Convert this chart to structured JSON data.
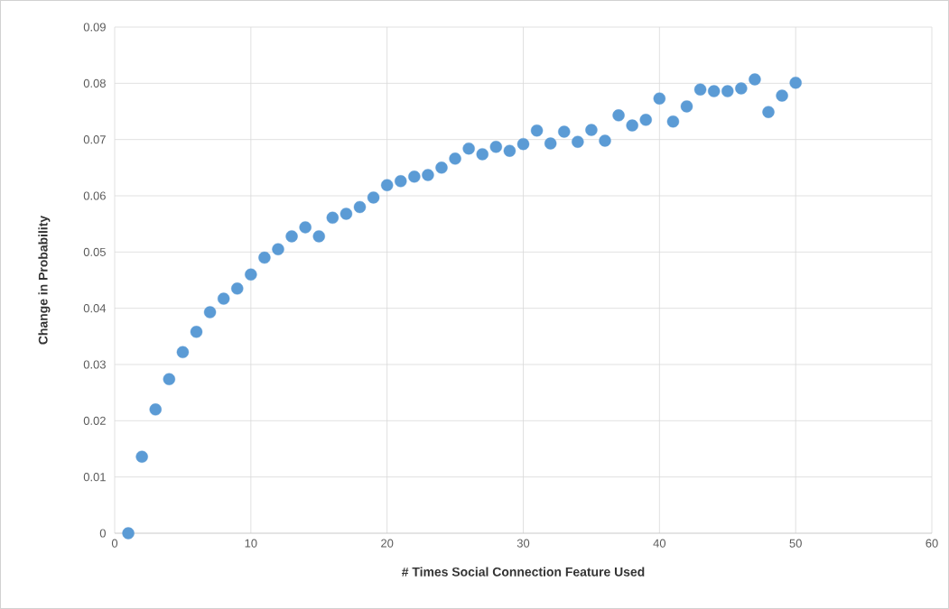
{
  "chart_data": {
    "type": "scatter",
    "xlabel": "# Times Social Connection  Feature Used",
    "ylabel": "Change in Probability",
    "x": [
      1,
      2,
      3,
      4,
      5,
      6,
      7,
      8,
      9,
      10,
      11,
      12,
      13,
      14,
      15,
      16,
      17,
      18,
      19,
      20,
      21,
      22,
      23,
      24,
      25,
      26,
      27,
      28,
      29,
      30,
      31,
      32,
      33,
      34,
      35,
      36,
      37,
      38,
      39,
      40,
      41,
      42,
      43,
      44,
      45,
      46,
      47,
      48,
      49,
      50
    ],
    "series": [
      {
        "color": "#5b9bd5",
        "values": [
          0.0,
          0.0136,
          0.022,
          0.0274,
          0.0322,
          0.0358,
          0.0393,
          0.0417,
          0.0435,
          0.046,
          0.049,
          0.0505,
          0.0528,
          0.0544,
          0.0528,
          0.0561,
          0.0568,
          0.058,
          0.0597,
          0.0619,
          0.0626,
          0.0634,
          0.0637,
          0.065,
          0.0666,
          0.0684,
          0.0674,
          0.0687,
          0.068,
          0.0692,
          0.0716,
          0.0693,
          0.0714,
          0.0696,
          0.0717,
          0.0698,
          0.0743,
          0.0725,
          0.0735,
          0.0773,
          0.0732,
          0.0759,
          0.0789,
          0.0786,
          0.0786,
          0.0791,
          0.0807,
          0.0749,
          0.0778,
          0.0801
        ]
      }
    ],
    "xlim": [
      0,
      60
    ],
    "xticks": [
      0,
      10,
      20,
      30,
      40,
      50,
      60
    ],
    "ylim": [
      0,
      0.09
    ],
    "yticks": [
      0,
      0.01,
      0.02,
      0.03,
      0.04,
      0.05,
      0.06,
      0.07,
      0.08,
      0.09
    ],
    "grid": true,
    "marker": "circle"
  }
}
